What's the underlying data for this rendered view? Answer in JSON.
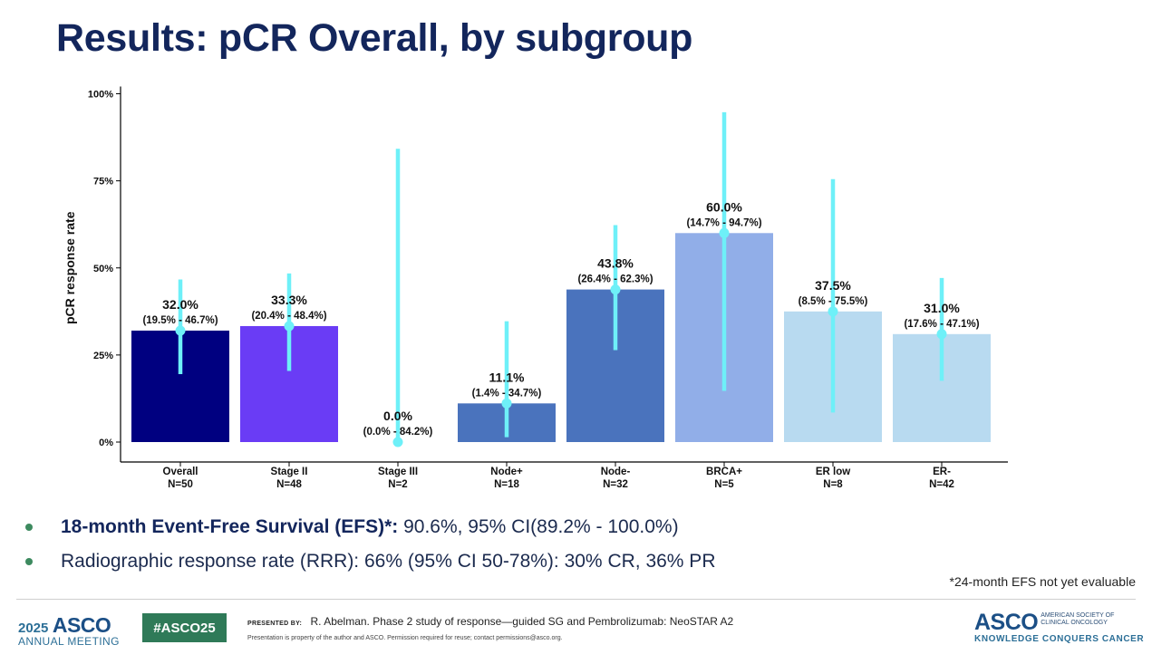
{
  "title": "Results: pCR Overall, by subgroup",
  "chart_data": {
    "type": "bar",
    "ylabel": "pCR response rate",
    "ylim": [
      0,
      100
    ],
    "yticks": [
      "0%",
      "25%",
      "50%",
      "75%",
      "100%"
    ],
    "ytick_values": [
      0,
      25,
      50,
      75,
      100
    ],
    "categories": [
      "Overall",
      "Stage II",
      "Stage III",
      "Node+",
      "Node-",
      "BRCA+",
      "ER low",
      "ER-"
    ],
    "n_labels": [
      "N=50",
      "N=48",
      "N=2",
      "N=18",
      "N=32",
      "N=5",
      "N=8",
      "N=42"
    ],
    "values": [
      32.0,
      33.3,
      0.0,
      11.1,
      43.8,
      60.0,
      37.5,
      31.0
    ],
    "ci_low": [
      19.5,
      20.4,
      0.0,
      1.4,
      26.4,
      14.7,
      8.5,
      17.6
    ],
    "ci_high": [
      46.7,
      48.4,
      84.2,
      34.7,
      62.3,
      94.7,
      75.5,
      47.1
    ],
    "value_labels": [
      "32.0%",
      "33.3%",
      "0.0%",
      "11.1%",
      "43.8%",
      "60.0%",
      "37.5%",
      "31.0%"
    ],
    "ci_labels": [
      "(19.5% - 46.7%)",
      "(20.4% - 48.4%)",
      "(0.0% - 84.2%)",
      "(1.4% - 34.7%)",
      "(26.4% - 62.3%)",
      "(14.7% - 94.7%)",
      "(8.5% - 75.5%)",
      "(17.6% - 47.1%)"
    ],
    "bar_colors": [
      "#000080",
      "#6a3cf5",
      "#ffffff",
      "#4a73bd",
      "#4a73bd",
      "#91aee8",
      "#b8daf0",
      "#b8daf0"
    ],
    "ci_color": "#6ef0f8",
    "grid": false
  },
  "bullets": [
    {
      "bold": "18-month Event-Free Survival (EFS)*:",
      "text": " 90.6%, 95% CI(89.2% - 100.0%)"
    },
    {
      "bold": "",
      "text": "Radiographic response rate (RRR): 66% (95% CI 50-78%): 30% CR, 36% PR"
    }
  ],
  "footnote": "*24-month EFS not yet evaluable",
  "footer": {
    "year": "2025",
    "asco": "ASCO",
    "meeting": "ANNUAL MEETING",
    "hashtag": "#ASCO25",
    "presented_by_label": "PRESENTED BY:",
    "presented_by": "R. Abelman. Phase 2 study of response—guided SG and Pembrolizumab: NeoSTAR A2",
    "property_notice": "Presentation is property of the author and ASCO. Permission required for reuse; contact permissions@asco.org.",
    "brand_name": "ASCO",
    "brand_society_line1": "AMERICAN SOCIETY OF",
    "brand_society_line2": "CLINICAL ONCOLOGY",
    "brand_tagline": "KNOWLEDGE CONQUERS CANCER"
  }
}
